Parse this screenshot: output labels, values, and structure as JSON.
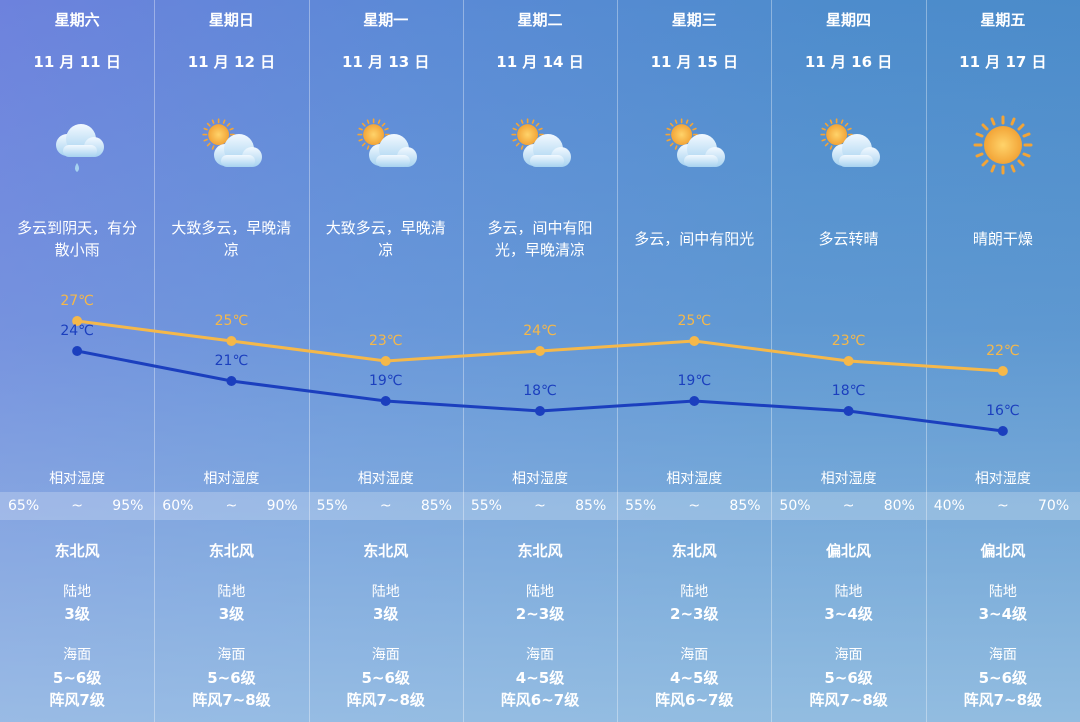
{
  "days": [
    {
      "weekday": "星期六",
      "date": "11 月 11 日",
      "weather": "多云到阴天，有分散小雨",
      "humidity_label": "相对湿度",
      "humidity_low": "65%",
      "humidity_sep": "~",
      "humidity_high": "95%",
      "wind": "东北风",
      "land_label": "陆地",
      "land": "3级",
      "sea_label": "海面",
      "sea": "5~6级",
      "gust": "阵风7级"
    },
    {
      "weekday": "星期日",
      "date": "11 月 12 日",
      "weather": "大致多云，早晚清凉",
      "humidity_label": "相对湿度",
      "humidity_low": "60%",
      "humidity_sep": "~",
      "humidity_high": "90%",
      "wind": "东北风",
      "land_label": "陆地",
      "land": "3级",
      "sea_label": "海面",
      "sea": "5~6级",
      "gust": "阵风7~8级"
    },
    {
      "weekday": "星期一",
      "date": "11 月 13 日",
      "weather": "大致多云，早晚清凉",
      "humidity_label": "相对湿度",
      "humidity_low": "55%",
      "humidity_sep": "~",
      "humidity_high": "85%",
      "wind": "东北风",
      "land_label": "陆地",
      "land": "3级",
      "sea_label": "海面",
      "sea": "5~6级",
      "gust": "阵风7~8级"
    },
    {
      "weekday": "星期二",
      "date": "11 月 14 日",
      "weather": "多云，间中有阳光，早晚清凉",
      "humidity_label": "相对湿度",
      "humidity_low": "55%",
      "humidity_sep": "~",
      "humidity_high": "85%",
      "wind": "东北风",
      "land_label": "陆地",
      "land": "2~3级",
      "sea_label": "海面",
      "sea": "4~5级",
      "gust": "阵风6~7级"
    },
    {
      "weekday": "星期三",
      "date": "11 月 15 日",
      "weather": "多云，间中有阳光",
      "humidity_label": "相对湿度",
      "humidity_low": "55%",
      "humidity_sep": "~",
      "humidity_high": "85%",
      "wind": "东北风",
      "land_label": "陆地",
      "land": "2~3级",
      "sea_label": "海面",
      "sea": "4~5级",
      "gust": "阵风6~7级"
    },
    {
      "weekday": "星期四",
      "date": "11 月 16 日",
      "weather": "多云转晴",
      "humidity_label": "相对湿度",
      "humidity_low": "50%",
      "humidity_sep": "~",
      "humidity_high": "80%",
      "wind": "偏北风",
      "land_label": "陆地",
      "land": "3~4级",
      "sea_label": "海面",
      "sea": "5~6级",
      "gust": "阵风7~8级"
    },
    {
      "weekday": "星期五",
      "date": "11 月 17 日",
      "weather": "晴朗干燥",
      "humidity_label": "相对湿度",
      "humidity_low": "40%",
      "humidity_sep": "~",
      "humidity_high": "70%",
      "wind": "偏北风",
      "land_label": "陆地",
      "land": "3~4级",
      "sea_label": "海面",
      "sea": "5~6级",
      "gust": "阵风7~8级"
    }
  ],
  "chart_data": {
    "type": "line",
    "series": [
      {
        "color": "#f5b84a",
        "values": [
          27,
          25,
          23,
          24,
          25,
          23,
          22
        ],
        "value_labels": [
          "27℃",
          "25℃",
          "23℃",
          "24℃",
          "25℃",
          "23℃",
          "22℃"
        ]
      },
      {
        "color": "#1b3fbe",
        "values": [
          24,
          21,
          19,
          18,
          19,
          18,
          16
        ],
        "value_labels": [
          "24℃",
          "21℃",
          "19℃",
          "18℃",
          "19℃",
          "18℃",
          "16℃"
        ]
      }
    ]
  }
}
